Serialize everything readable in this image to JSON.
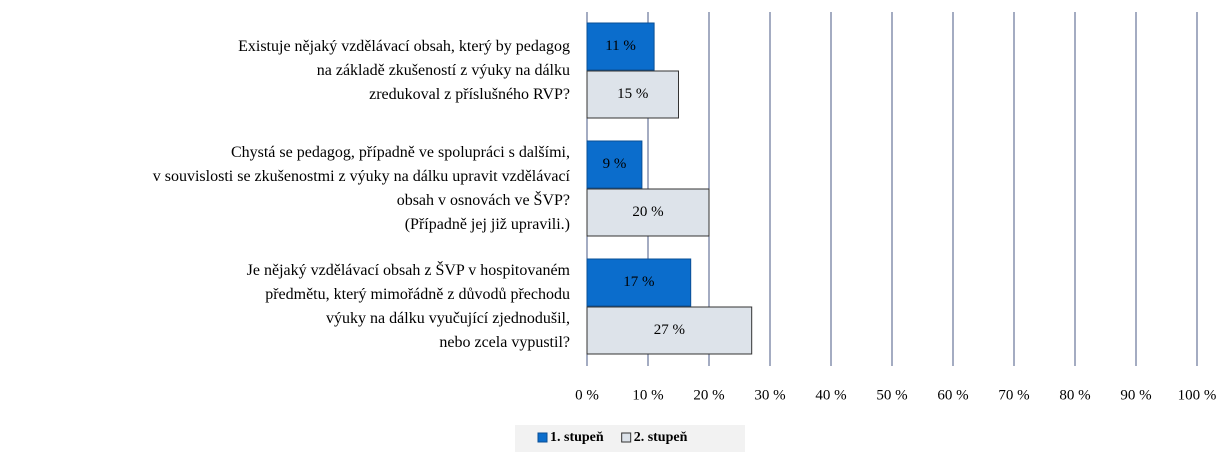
{
  "chart_data": {
    "type": "bar",
    "orientation": "horizontal",
    "categories": [
      [
        "Existuje nějaký vzdělávací obsah, který by pedagog",
        "na základě zkušeností z výuky na dálku",
        "zredukoval z příslušného RVP?"
      ],
      [
        "Chystá se pedagog, případně ve spolupráci s dalšími,",
        "v souvislosti se zkušenostmi z výuky na dálku upravit vzdělávací",
        "obsah v osnovách ve ŠVP?",
        "(Případně jej již upravili.)"
      ],
      [
        "Je nějaký vzdělávací obsah z ŠVP v hospitovaném",
        "předmětu, který mimořádně z důvodů přechodu",
        "výuky na dálku vyučující zjednodušil,",
        "nebo zcela vypustil?"
      ]
    ],
    "series": [
      {
        "name": "1. stupeň",
        "color": "#0b6dcc",
        "values": [
          11,
          9,
          17
        ],
        "value_labels": [
          "11 %",
          "9 %",
          "17 %"
        ]
      },
      {
        "name": "2. stupeň",
        "color": "#dde3ea",
        "values": [
          15,
          20,
          27
        ],
        "value_labels": [
          "15 %",
          "20 %",
          "27 %"
        ]
      }
    ],
    "xlim": [
      0,
      100
    ],
    "xticks": [
      {
        "value": 0,
        "label": "0 %"
      },
      {
        "value": 10,
        "label": "10 %"
      },
      {
        "value": 20,
        "label": "20 %"
      },
      {
        "value": 30,
        "label": "30 %"
      },
      {
        "value": 40,
        "label": "40 %"
      },
      {
        "value": 50,
        "label": "50 %"
      },
      {
        "value": 60,
        "label": "60 %"
      },
      {
        "value": 70,
        "label": "70 %"
      },
      {
        "value": 80,
        "label": "80 %"
      },
      {
        "value": 90,
        "label": "90 %"
      },
      {
        "value": 100,
        "label": "100 %"
      }
    ],
    "grid": true,
    "legend": "bottom"
  }
}
